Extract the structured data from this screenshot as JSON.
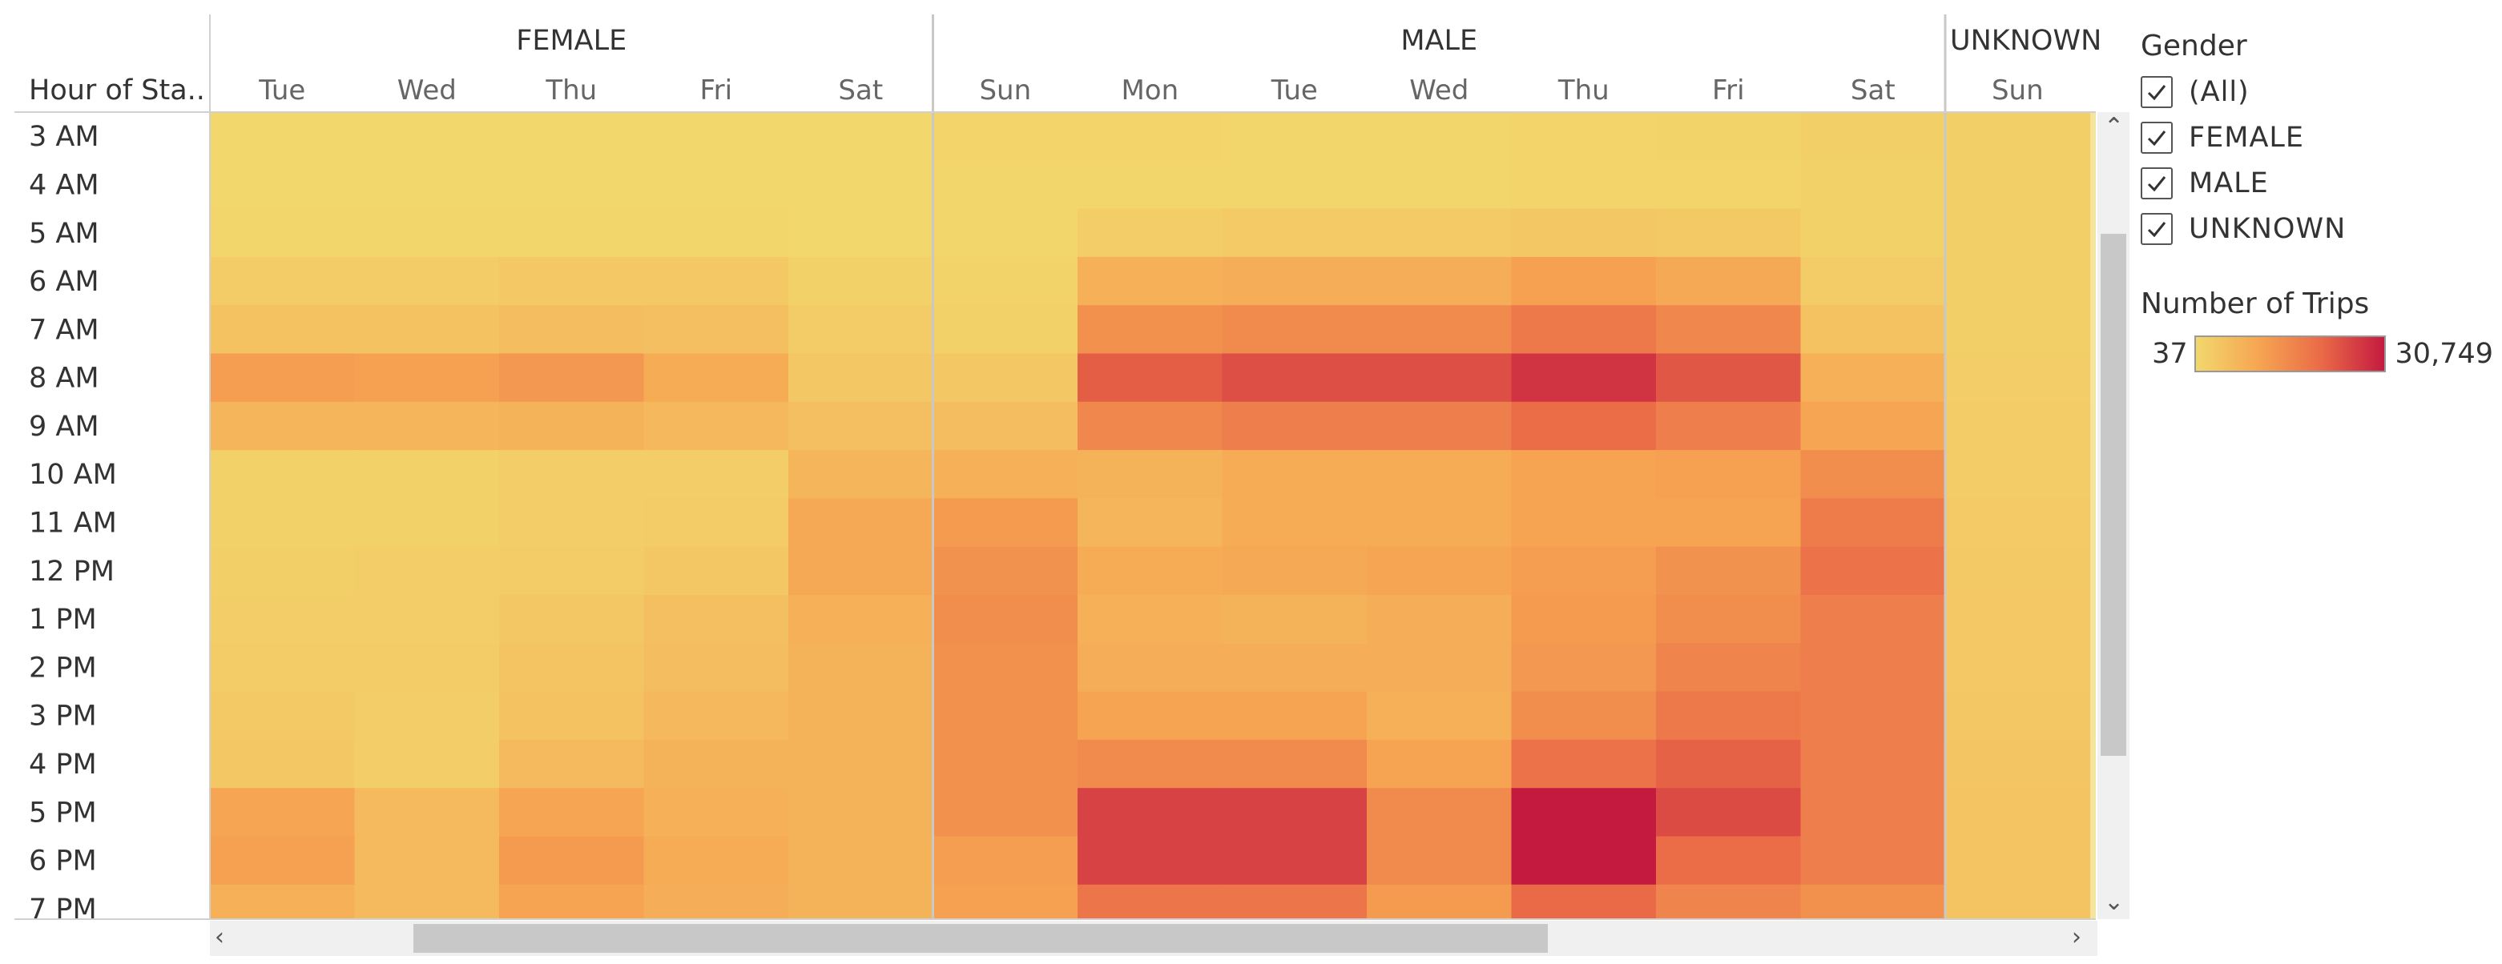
{
  "chart_data": {
    "type": "heatmap",
    "row_header": "Hour of Sta..",
    "rows": [
      "3 AM",
      "4 AM",
      "5 AM",
      "6 AM",
      "7 AM",
      "8 AM",
      "9 AM",
      "10 AM",
      "11 AM",
      "12 PM",
      "1 PM",
      "2 PM",
      "3 PM",
      "4 PM",
      "5 PM",
      "6 PM",
      "7 PM"
    ],
    "groups": [
      {
        "name": "FEMALE",
        "days": [
          "Tue",
          "Wed",
          "Thu",
          "Fri",
          "Sat"
        ]
      },
      {
        "name": "MALE",
        "days": [
          "Sun",
          "Mon",
          "Tue",
          "Wed",
          "Thu",
          "Fri",
          "Sat"
        ]
      },
      {
        "name": "UNKNOWN",
        "days": [
          "Sun"
        ]
      }
    ],
    "values": [
      [
        300,
        250,
        250,
        250,
        250,
        800,
        800,
        700,
        700,
        900,
        1000,
        1800,
        1800
      ],
      [
        300,
        300,
        300,
        300,
        300,
        700,
        700,
        700,
        700,
        800,
        900,
        1500,
        1800
      ],
      [
        500,
        500,
        500,
        500,
        300,
        700,
        2200,
        2800,
        2800,
        3500,
        3000,
        1500,
        1800
      ],
      [
        2500,
        2500,
        3200,
        3200,
        1500,
        1000,
        8000,
        8500,
        8500,
        11000,
        9500,
        2500,
        1800
      ],
      [
        4500,
        4500,
        5500,
        5000,
        2500,
        1500,
        14000,
        15000,
        15000,
        18000,
        15500,
        4500,
        1800
      ],
      [
        11500,
        11000,
        12500,
        9000,
        3500,
        3500,
        22000,
        24000,
        24000,
        27500,
        23000,
        8000,
        2200
      ],
      [
        7000,
        7000,
        7500,
        6500,
        5000,
        5500,
        15500,
        17000,
        17000,
        20000,
        17000,
        10000,
        2500
      ],
      [
        1500,
        1500,
        2000,
        2000,
        7000,
        8000,
        7500,
        9000,
        9000,
        10500,
        11000,
        14500,
        2500
      ],
      [
        1500,
        1500,
        2000,
        2500,
        9500,
        12000,
        7000,
        9000,
        9000,
        10500,
        10500,
        17500,
        2800
      ],
      [
        1800,
        2200,
        2500,
        3500,
        9500,
        13500,
        9000,
        9500,
        10000,
        11500,
        13500,
        19000,
        3000
      ],
      [
        2000,
        2200,
        3500,
        5000,
        8000,
        14500,
        8000,
        7500,
        8500,
        12000,
        14500,
        17000,
        3200
      ],
      [
        2500,
        2500,
        4000,
        5500,
        7500,
        14000,
        8500,
        8500,
        8500,
        12500,
        16000,
        17000,
        3200
      ],
      [
        3000,
        2200,
        4500,
        6500,
        7500,
        14000,
        10500,
        10500,
        8000,
        14500,
        18000,
        17000,
        3500
      ],
      [
        3500,
        2200,
        6000,
        7500,
        7500,
        14000,
        15000,
        15000,
        10500,
        19000,
        21500,
        17000,
        3800
      ],
      [
        10000,
        6000,
        10000,
        8000,
        7500,
        14000,
        25500,
        25500,
        15000,
        30749,
        24500,
        17000,
        4000
      ],
      [
        11000,
        6000,
        12000,
        9000,
        7500,
        11500,
        25500,
        25500,
        15000,
        30749,
        20000,
        17000,
        4000
      ],
      [
        8000,
        6000,
        10500,
        8500,
        7500,
        11000,
        18500,
        18500,
        12000,
        20500,
        16000,
        14000,
        4000
      ]
    ],
    "color_scale": {
      "min": 37,
      "max": 30749,
      "colors": [
        "#f2d86d",
        "#f6a552",
        "#ea6a47",
        "#c41a40"
      ]
    }
  },
  "filter": {
    "title": "Gender",
    "items": [
      "(All)",
      "FEMALE",
      "MALE",
      "UNKNOWN"
    ]
  },
  "legend": {
    "title": "Number of Trips",
    "min_label": "37",
    "max_label": "30,749"
  }
}
